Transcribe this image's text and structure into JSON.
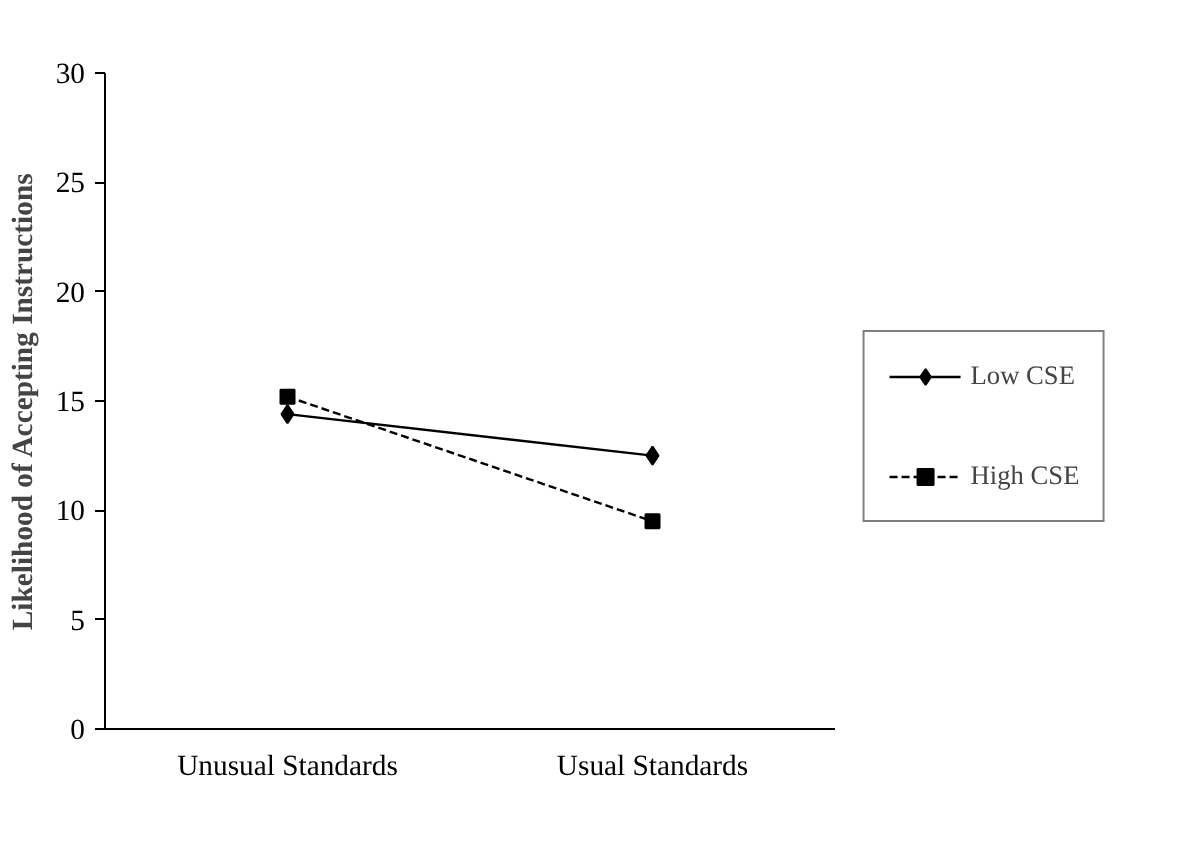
{
  "chart_data": {
    "type": "line",
    "ylabel": "Likelihood of Accepting Instructions",
    "categories": [
      "Unusual Standards",
      "Usual Standards"
    ],
    "series": [
      {
        "name": "Low CSE",
        "color": "#000000",
        "values": [
          14.4,
          12.5
        ],
        "marker": "diamond",
        "line_style": "solid"
      },
      {
        "name": "High CSE",
        "color": "#000000",
        "values": [
          15.2,
          9.5
        ],
        "marker": "square",
        "line_style": "dashed"
      }
    ],
    "ylim": [
      0,
      30
    ],
    "yticks": [
      0,
      5,
      10,
      15,
      20,
      25,
      30
    ],
    "grid": false,
    "legend": "right"
  }
}
